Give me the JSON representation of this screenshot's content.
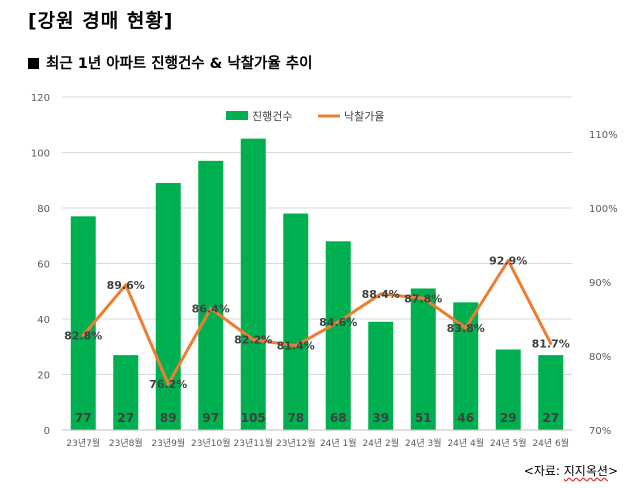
{
  "page": {
    "title": "[강원 경매 현황]",
    "subtitle": "최근 1년 아파트 진행건수 & 낙찰가율 추이",
    "source_prefix": "<자료: ",
    "source_name": "지지옥션",
    "source_suffix": ">"
  },
  "colors": {
    "bar": "#00b050",
    "line": "#ed7d31",
    "grid": "#d9d9d9",
    "axis_text": "#595959"
  },
  "chart_data": {
    "type": "bar",
    "categories": [
      "23년7월",
      "23년8월",
      "23년9월",
      "23년10월",
      "23년11월",
      "23년12월",
      "24년 1월",
      "24년 2월",
      "24년 3월",
      "24년 4월",
      "24년 5월",
      "24년 6월"
    ],
    "series": [
      {
        "name": "진행건수",
        "type": "bar",
        "axis": "left",
        "values": [
          77,
          27,
          89,
          97,
          105,
          78,
          68,
          39,
          51,
          46,
          29,
          27
        ],
        "labels": [
          "77",
          "27",
          "89",
          "97",
          "105",
          "78",
          "68",
          "39",
          "51",
          "46",
          "29",
          "27"
        ]
      },
      {
        "name": "낙찰가율",
        "type": "line",
        "axis": "right",
        "values": [
          82.8,
          89.6,
          76.2,
          86.4,
          82.2,
          81.4,
          84.6,
          88.4,
          87.8,
          83.8,
          92.9,
          81.7
        ],
        "labels": [
          "82.8%",
          "89.6%",
          "76.2%",
          "86.4%",
          "82.2%",
          "81.4%",
          "84.6%",
          "88.4%",
          "87.8%",
          "83.8%",
          "92.9%",
          "81.7%"
        ]
      }
    ],
    "y_left": {
      "min": 0,
      "max": 120,
      "ticks": [
        0,
        20,
        40,
        60,
        80,
        100,
        120
      ],
      "tick_labels": [
        "0",
        "20",
        "40",
        "60",
        "80",
        "100",
        "120"
      ]
    },
    "y_right": {
      "min": 70,
      "max": 115,
      "ticks": [
        70,
        80,
        90,
        100,
        110
      ],
      "tick_labels": [
        "70%",
        "80%",
        "90%",
        "100%",
        "110%"
      ]
    },
    "grid": true,
    "legend": "top-center"
  }
}
